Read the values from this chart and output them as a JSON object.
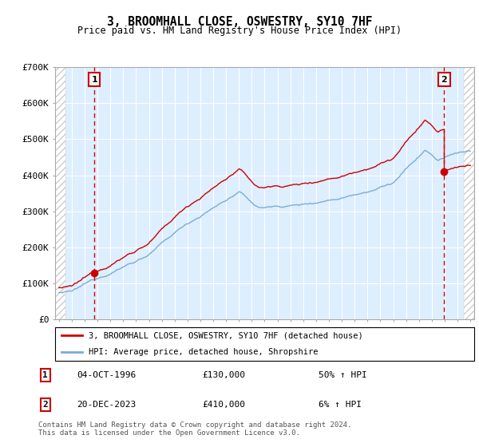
{
  "title": "3, BROOMHALL CLOSE, OSWESTRY, SY10 7HF",
  "subtitle": "Price paid vs. HM Land Registry's House Price Index (HPI)",
  "legend_line1": "3, BROOMHALL CLOSE, OSWESTRY, SY10 7HF (detached house)",
  "legend_line2": "HPI: Average price, detached house, Shropshire",
  "sale1_date": "04-OCT-1996",
  "sale1_price": "£130,000",
  "sale1_hpi": "50% ↑ HPI",
  "sale2_date": "20-DEC-2023",
  "sale2_price": "£410,000",
  "sale2_hpi": "6% ↑ HPI",
  "footnote": "Contains HM Land Registry data © Crown copyright and database right 2024.\nThis data is licensed under the Open Government Licence v3.0.",
  "red_line_color": "#cc0000",
  "blue_line_color": "#7aadd4",
  "dashed_color": "#cc0000",
  "ylim": [
    0,
    700000
  ],
  "yticks": [
    0,
    100000,
    200000,
    300000,
    400000,
    500000,
    600000,
    700000
  ],
  "ytick_labels": [
    "£0",
    "£100K",
    "£200K",
    "£300K",
    "£400K",
    "£500K",
    "£600K",
    "£700K"
  ],
  "sale1_x": 1996.76,
  "sale1_y": 130000,
  "sale2_x": 2023.96,
  "sale2_y": 410000,
  "xmin": 1994.0,
  "xmax": 2026.0,
  "hatch_left_end": 1994.5,
  "hatch_right_start": 2025.5
}
